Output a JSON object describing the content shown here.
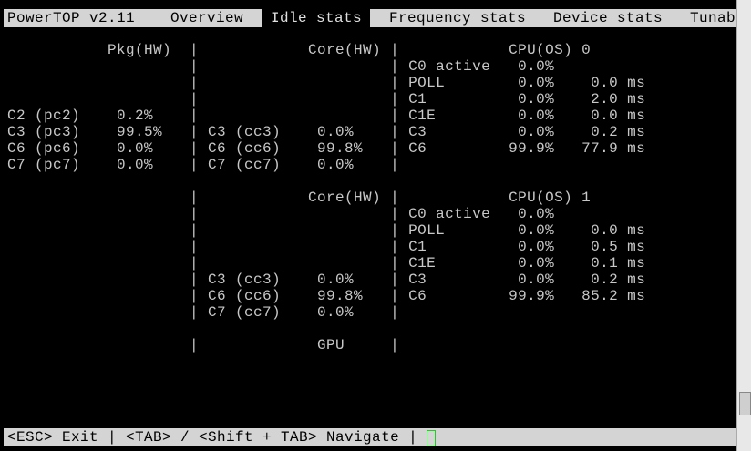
{
  "header": {
    "app": "PowerTOP v2.11",
    "tabs": [
      "Overview",
      "Idle stats",
      "Frequency stats",
      "Device stats",
      "Tunab"
    ],
    "active_tab": "Idle stats"
  },
  "body_text": "\n\n           Pkg(HW)  |            Core(HW) |            CPU(OS) 0\n                    |                     | C0 active   0.0%\n                    |                     | POLL        0.0%    0.0 ms\n                    |                     | C1          0.0%    2.0 ms\nC2 (pc2)    0.2%    |                     | C1E         0.0%    0.0 ms\nC3 (pc3)    99.5%   | C3 (cc3)    0.0%    | C3          0.0%    0.2 ms\nC6 (pc6)    0.0%    | C6 (cc6)    99.8%   | C6         99.9%   77.9 ms\nC7 (pc7)    0.0%    | C7 (cc7)    0.0%    |\n\n                    |            Core(HW) |            CPU(OS) 1\n                    |                     | C0 active   0.0%\n                    |                     | POLL        0.0%    0.0 ms\n                    |                     | C1          0.0%    0.5 ms\n                    |                     | C1E         0.0%    0.1 ms\n                    | C3 (cc3)    0.0%    | C3          0.0%    0.2 ms\n                    | C6 (cc6)    99.8%   | C6         99.9%   85.2 ms\n                    | C7 (cc7)    0.0%    |\n\n                    |             GPU     |",
  "footer": {
    "help": "<ESC> Exit | <TAB> / <Shift + TAB> Navigate |"
  }
}
